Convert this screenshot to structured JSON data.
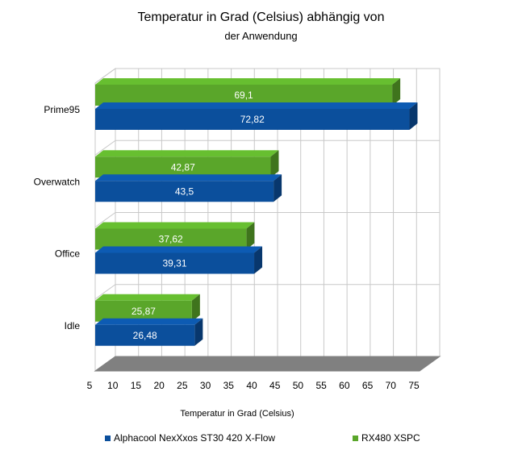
{
  "chart_data": {
    "type": "bar",
    "orientation": "horizontal",
    "title": "Temperatur in Grad (Celsius) abhängig von",
    "subtitle": "der Anwendung",
    "xlabel": "Temperatur in Grad (Celsius)",
    "ylabel": "",
    "xlim": [
      5,
      75
    ],
    "xticks": [
      "5",
      "10",
      "15",
      "20",
      "25",
      "30",
      "35",
      "40",
      "45",
      "50",
      "55",
      "60",
      "65",
      "70",
      "75"
    ],
    "categories": [
      "Prime95",
      "Overwatch",
      "Office",
      "Idle"
    ],
    "grid": true,
    "legend_position": "bottom",
    "series": [
      {
        "name": "Alphacool NexXxos ST30 420 X-Flow",
        "color": "#0b4f9c",
        "values": [
          72.82,
          43.5,
          39.31,
          26.48
        ],
        "labels": [
          "72,82",
          "43,5",
          "39,31",
          "26,48"
        ]
      },
      {
        "name": "RX480 XSPC",
        "color": "#5aa62a",
        "values": [
          69.1,
          42.87,
          37.62,
          25.87
        ],
        "labels": [
          "69,1",
          "42,87",
          "37,62",
          "25,87"
        ]
      }
    ]
  }
}
